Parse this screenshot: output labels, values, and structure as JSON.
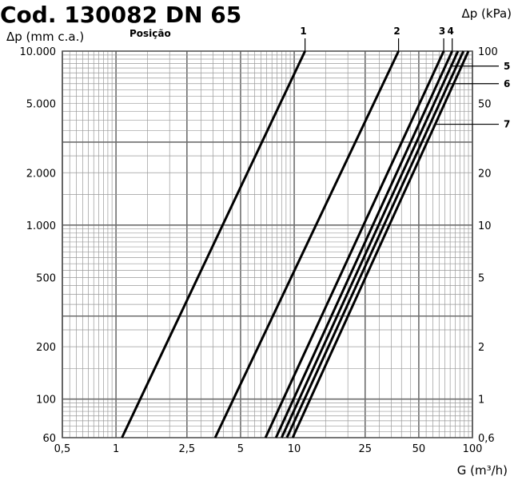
{
  "page": {
    "title_visible": "Cod. 130082 DN 65"
  },
  "chart_data": {
    "type": "line",
    "title": "Cod. 130082 DN 65",
    "x_scale": "log",
    "y_scale": "log",
    "xlabel": "G (m³/h)",
    "ylabel_left": "Δp (mm c.a.)",
    "ylabel_right": "Δp (kPa)",
    "xlim": [
      0.5,
      100
    ],
    "ylim_left": [
      60,
      10000
    ],
    "ylim_right": [
      0.6,
      100
    ],
    "grid": true,
    "x_ticks": [
      {
        "value": 0.5,
        "label": "0,5"
      },
      {
        "value": 1,
        "label": "1"
      },
      {
        "value": 2.5,
        "label": "2,5"
      },
      {
        "value": 5,
        "label": "5"
      },
      {
        "value": 10,
        "label": "10"
      },
      {
        "value": 25,
        "label": "25"
      },
      {
        "value": 50,
        "label": "50"
      },
      {
        "value": 100,
        "label": "100"
      }
    ],
    "y_ticks_left": [
      {
        "value": 10000,
        "label": "10.000"
      },
      {
        "value": 5000,
        "label": "5.000"
      },
      {
        "value": 2000,
        "label": "2.000"
      },
      {
        "value": 1000,
        "label": "1.000"
      },
      {
        "value": 500,
        "label": "500"
      },
      {
        "value": 200,
        "label": "200"
      },
      {
        "value": 100,
        "label": "100"
      },
      {
        "value": 60,
        "label": "60"
      }
    ],
    "y_ticks_right": [
      {
        "value": 100,
        "label": "100"
      },
      {
        "value": 50,
        "label": "50"
      },
      {
        "value": 20,
        "label": "20"
      },
      {
        "value": 10,
        "label": "10"
      },
      {
        "value": 5,
        "label": "5"
      },
      {
        "value": 2,
        "label": "2"
      },
      {
        "value": 1,
        "label": "1"
      },
      {
        "value": 0.6,
        "label": "0,6"
      }
    ],
    "positions_header": "Posição",
    "series": [
      {
        "name": "1",
        "points": [
          [
            1.08,
            60
          ],
          [
            11.5,
            10000
          ]
        ],
        "label_side": "top"
      },
      {
        "name": "2",
        "points": [
          [
            3.6,
            60
          ],
          [
            38.5,
            10000
          ]
        ],
        "label_side": "top"
      },
      {
        "name": "3",
        "points": [
          [
            6.9,
            60
          ],
          [
            69,
            10000
          ]
        ],
        "label_side": "top"
      },
      {
        "name": "4",
        "points": [
          [
            7.9,
            60
          ],
          [
            77,
            10000
          ]
        ],
        "label_side": "top"
      },
      {
        "name": "5",
        "points": [
          [
            8.5,
            60
          ],
          [
            83,
            10000
          ]
        ],
        "label_side": "right",
        "label_y": 8200
      },
      {
        "name": "6",
        "points": [
          [
            9.1,
            60
          ],
          [
            89,
            10000
          ]
        ],
        "label_side": "right",
        "label_y": 6500
      },
      {
        "name": "7",
        "points": [
          [
            9.8,
            60
          ],
          [
            95,
            10000
          ]
        ],
        "label_side": "right",
        "label_y": 3800
      }
    ]
  }
}
